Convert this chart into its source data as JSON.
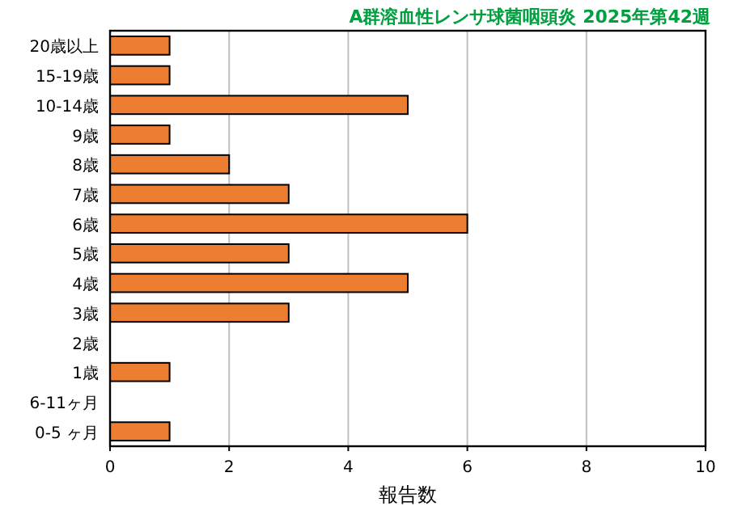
{
  "chart_data": {
    "type": "bar",
    "orientation": "horizontal",
    "title": "A群溶血性レンサ球菌咽頭炎 2025年第42週",
    "xlabel": "報告数",
    "categories": [
      "20歳以上",
      "15-19歳",
      "10-14歳",
      "9歳",
      "8歳",
      "7歳",
      "6歳",
      "5歳",
      "4歳",
      "3歳",
      "2歳",
      "1歳",
      "6-11ヶ月",
      "0-5 ヶ月"
    ],
    "values": [
      1,
      1,
      5,
      1,
      2,
      3,
      6,
      3,
      5,
      3,
      0,
      1,
      0,
      1
    ],
    "color": "#ed7d31",
    "xlim": [
      0,
      10
    ],
    "xticks": [
      0,
      2,
      4,
      6,
      8,
      10
    ],
    "grid": "x"
  }
}
